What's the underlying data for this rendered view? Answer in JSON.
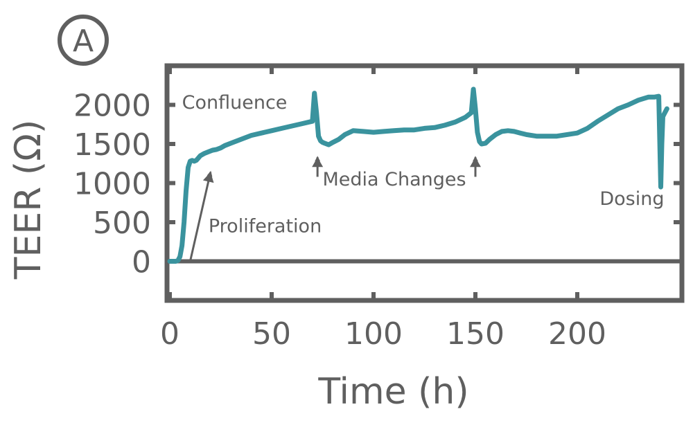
{
  "colors": {
    "series": "#3a939e",
    "frame": "#5f5f5f",
    "arrow": "#5f5f5f",
    "text": "#5f5f5f"
  },
  "panel_label": "A",
  "chart_data": {
    "type": "line",
    "title": "",
    "xlabel": "Time (h)",
    "ylabel": "TEER (Ω)",
    "xlim": [
      0,
      250
    ],
    "ylim": [
      -500,
      2500
    ],
    "x_ticks": [
      0,
      50,
      100,
      150,
      200
    ],
    "x_tick_labels": [
      "0",
      "50",
      "100",
      "150",
      "200"
    ],
    "y_ticks": [
      0,
      500,
      1000,
      1500,
      2000
    ],
    "y_tick_labels": [
      "0",
      "500",
      "1000",
      "1500",
      "2000"
    ],
    "grid": false,
    "zero_line": true,
    "series": [
      {
        "x": [
          0,
          2,
          3,
          4,
          5,
          6,
          7,
          8,
          9,
          10,
          11,
          12,
          13,
          14,
          15,
          17,
          19,
          21,
          23,
          25,
          27,
          30,
          33,
          36,
          40,
          45,
          50,
          55,
          60,
          65,
          70,
          71,
          72,
          73,
          74,
          75,
          76,
          78,
          80,
          83,
          86,
          90,
          95,
          100,
          105,
          110,
          115,
          120,
          125,
          130,
          135,
          140,
          145,
          148,
          149,
          150,
          151,
          152,
          153,
          155,
          157,
          160,
          163,
          166,
          169,
          172,
          175,
          180,
          185,
          190,
          195,
          200,
          205,
          210,
          215,
          220,
          225,
          230,
          235,
          238,
          240,
          241,
          241.5,
          242,
          243,
          244
        ],
        "y": [
          0,
          0,
          0,
          10,
          60,
          200,
          500,
          900,
          1200,
          1280,
          1290,
          1280,
          1290,
          1320,
          1350,
          1380,
          1400,
          1420,
          1430,
          1450,
          1480,
          1510,
          1540,
          1570,
          1610,
          1640,
          1670,
          1700,
          1730,
          1760,
          1790,
          2150,
          1900,
          1600,
          1540,
          1520,
          1510,
          1490,
          1520,
          1560,
          1620,
          1670,
          1660,
          1650,
          1660,
          1670,
          1680,
          1680,
          1700,
          1710,
          1740,
          1780,
          1840,
          1900,
          2200,
          1950,
          1650,
          1530,
          1500,
          1510,
          1560,
          1620,
          1660,
          1670,
          1660,
          1640,
          1620,
          1600,
          1600,
          1600,
          1620,
          1640,
          1700,
          1790,
          1870,
          1950,
          2000,
          2060,
          2100,
          2100,
          2110,
          950,
          1500,
          1850,
          1900,
          1950
        ]
      }
    ],
    "annotations": [
      {
        "text": "Confluence",
        "x": 6,
        "y": 1950
      },
      {
        "text": "Proliferation",
        "x": 19,
        "y": 370,
        "arrow_from": [
          10,
          0
        ],
        "arrow_to": [
          20,
          1140
        ]
      },
      {
        "text": "Media Changes",
        "x": 75,
        "y": 970,
        "arrows": [
          {
            "from": [
              72.5,
              1080
            ],
            "to": [
              72.5,
              1330
            ]
          },
          {
            "from": [
              150,
              1080
            ],
            "to": [
              150,
              1330
            ]
          }
        ]
      },
      {
        "text": "Dosing",
        "x": 211,
        "y": 720
      }
    ]
  }
}
